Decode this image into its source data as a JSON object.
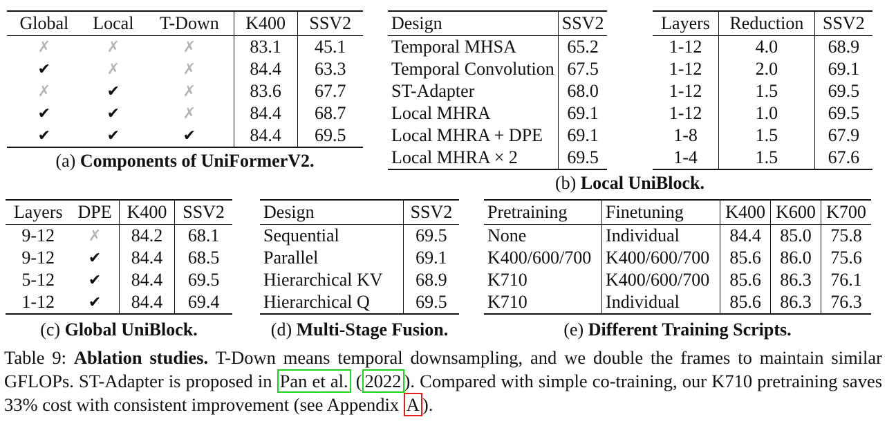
{
  "mark_cross": "✗",
  "mark_check": "✔",
  "table_a": {
    "headers": [
      "Global",
      "Local",
      "T-Down",
      "K400",
      "SSV2"
    ],
    "rows": [
      [
        "✗",
        "✗",
        "✗",
        "83.1",
        "45.1"
      ],
      [
        "✔",
        "✗",
        "✗",
        "84.4",
        "63.3"
      ],
      [
        "✗",
        "✔",
        "✗",
        "83.6",
        "67.7"
      ],
      [
        "✔",
        "✔",
        "✗",
        "84.4",
        "68.7"
      ],
      [
        "✔",
        "✔",
        "✔",
        "84.4",
        "69.5"
      ]
    ],
    "caption_prefix": "(a)",
    "caption_bold": "Components of UniFormerV2."
  },
  "table_b1": {
    "headers": [
      "Design",
      "SSV2"
    ],
    "rows": [
      [
        "Temporal MHSA",
        "65.2"
      ],
      [
        "Temporal Convolution",
        "67.5"
      ],
      [
        "ST-Adapter",
        "68.0"
      ],
      [
        "Local MHRA",
        "69.1"
      ],
      [
        "Local MHRA + DPE",
        "69.1"
      ],
      [
        "Local MHRA × 2",
        "69.5"
      ]
    ]
  },
  "table_b2": {
    "headers": [
      "Layers",
      "Reduction",
      "SSV2"
    ],
    "rows": [
      [
        "1-12",
        "4.0",
        "68.9"
      ],
      [
        "1-12",
        "2.0",
        "69.1"
      ],
      [
        "1-12",
        "1.5",
        "69.5"
      ],
      [
        "1-12",
        "1.0",
        "69.5"
      ],
      [
        "1-8",
        "1.5",
        "67.9"
      ],
      [
        "1-4",
        "1.5",
        "67.6"
      ]
    ],
    "caption_prefix": "(b)",
    "caption_bold": "Local UniBlock."
  },
  "table_c": {
    "headers": [
      "Layers",
      "DPE",
      "K400",
      "SSV2"
    ],
    "rows": [
      [
        "9-12",
        "✗",
        "84.2",
        "68.1"
      ],
      [
        "9-12",
        "✔",
        "84.4",
        "68.5"
      ],
      [
        "5-12",
        "✔",
        "84.4",
        "69.5"
      ],
      [
        "1-12",
        "✔",
        "84.4",
        "69.4"
      ]
    ],
    "caption_prefix": "(c)",
    "caption_bold": "Global UniBlock."
  },
  "table_d": {
    "headers": [
      "Design",
      "SSV2"
    ],
    "rows": [
      [
        "Sequential",
        "69.5"
      ],
      [
        "Parallel",
        "69.1"
      ],
      [
        "Hierarchical KV",
        "68.9"
      ],
      [
        "Hierarchical Q",
        "69.5"
      ]
    ],
    "caption_prefix": "(d)",
    "caption_bold": "Multi-Stage Fusion."
  },
  "table_e": {
    "headers": [
      "Pretraining",
      "Finetuning",
      "K400",
      "K600",
      "K700"
    ],
    "rows": [
      [
        "None",
        "Individual",
        "84.4",
        "85.0",
        "75.8"
      ],
      [
        "K400/600/700",
        "K400/600/700",
        "85.6",
        "86.0",
        "75.6"
      ],
      [
        "K710",
        "K400/600/700",
        "85.6",
        "86.3",
        "76.1"
      ],
      [
        "K710",
        "Individual",
        "85.6",
        "86.3",
        "76.3"
      ]
    ],
    "caption_prefix": "(e)",
    "caption_bold": "Different Training Scripts."
  },
  "caption": {
    "label": "Table 9:",
    "title": "Ablation studies.",
    "text1": "T-Down means temporal downsampling, and we double the frames to maintain similar GFLOPs.  ST-Adapter is proposed in",
    "cite_authors": "Pan et al.",
    "cite_year_open": "(",
    "cite_year": "2022",
    "cite_year_close": ").",
    "text2": "Compared with simple co-training, our K710 pretraining saves 33% cost with consistent improvement (see Appendix",
    "appendix_ref": "A",
    "text3": ")."
  }
}
